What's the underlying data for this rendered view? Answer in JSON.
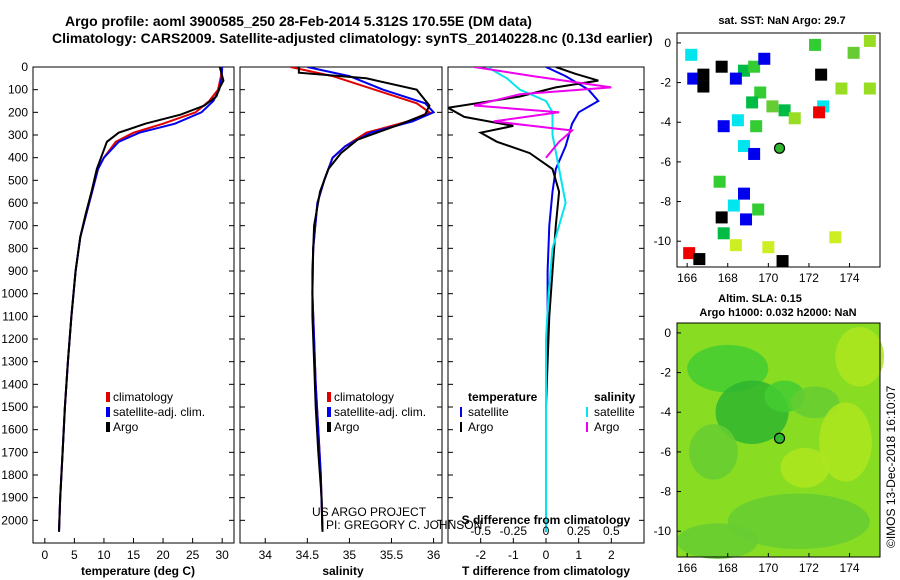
{
  "title_line1": "Argo profile: aoml 3900585_250 28-Feb-2014 5.312S 170.55E (DM data)",
  "title_line2": "Climatology: CARS2009. Satellite-adjusted climatology: synTS_20140228.nc (0.13d earlier)",
  "credit_project": "US ARGO PROJECT",
  "credit_pi": "PI: GREGORY C. JOHNSON",
  "footer_stamp": "©IMOS 13-Dec-2018 16:10:07",
  "colors": {
    "climatology": "#e00000",
    "satellite": "#0000ee",
    "argo": "#000000",
    "sat_cyan": "#00e5ee",
    "argo_magenta": "#ee00ee",
    "map_green": "#88dd22"
  },
  "chart_data": [
    {
      "type": "line",
      "name": "temperature",
      "xlabel": "temperature (deg C)",
      "xlim": [
        -2,
        32
      ],
      "ylim": [
        2100,
        0
      ],
      "xticks": [
        0,
        5,
        10,
        15,
        20,
        25,
        30
      ],
      "yticks": [
        0,
        100,
        200,
        300,
        400,
        500,
        600,
        700,
        800,
        900,
        1000,
        1100,
        1200,
        1300,
        1400,
        1500,
        1600,
        1700,
        1800,
        1900,
        2000
      ],
      "legend": [
        "climatology",
        "satellite-adj. clim.",
        "Argo"
      ],
      "series": [
        {
          "name": "climatology",
          "color": "#e00000",
          "points": [
            [
              29.9,
              0
            ],
            [
              29.8,
              40
            ],
            [
              29.3,
              100
            ],
            [
              27.8,
              150
            ],
            [
              25.5,
              200
            ],
            [
              20,
              250
            ],
            [
              15,
              290
            ],
            [
              12,
              330
            ],
            [
              10,
              400
            ],
            [
              9,
              450
            ],
            [
              8,
              550
            ],
            [
              7,
              650
            ],
            [
              6,
              750
            ],
            [
              5.2,
              900
            ],
            [
              4.5,
              1100
            ],
            [
              3.9,
              1300
            ],
            [
              3.4,
              1500
            ],
            [
              3,
              1700
            ],
            [
              2.6,
              1900
            ],
            [
              2.4,
              2050
            ]
          ]
        },
        {
          "name": "satellite-adj. clim.",
          "color": "#0000ee",
          "points": [
            [
              30,
              0
            ],
            [
              29.9,
              50
            ],
            [
              29.5,
              100
            ],
            [
              28.5,
              150
            ],
            [
              26.5,
              200
            ],
            [
              22,
              250
            ],
            [
              16,
              290
            ],
            [
              12.5,
              330
            ],
            [
              10,
              400
            ],
            [
              9,
              450
            ],
            [
              8,
              550
            ],
            [
              7,
              650
            ],
            [
              6,
              750
            ],
            [
              5.2,
              900
            ],
            [
              4.5,
              1100
            ],
            [
              3.9,
              1300
            ],
            [
              3.4,
              1500
            ],
            [
              3,
              1700
            ],
            [
              2.6,
              1900
            ],
            [
              2.4,
              2050
            ]
          ]
        },
        {
          "name": "Argo",
          "color": "#000000",
          "points": [
            [
              29.6,
              0
            ],
            [
              29.9,
              30
            ],
            [
              30.2,
              60
            ],
            [
              29.6,
              90
            ],
            [
              29,
              130
            ],
            [
              27,
              170
            ],
            [
              23,
              210
            ],
            [
              17,
              250
            ],
            [
              12.5,
              290
            ],
            [
              10.5,
              330
            ],
            [
              9.5,
              400
            ],
            [
              8.8,
              450
            ],
            [
              7.9,
              550
            ],
            [
              6.9,
              650
            ],
            [
              6,
              750
            ],
            [
              5.2,
              900
            ],
            [
              4.5,
              1100
            ],
            [
              3.9,
              1300
            ],
            [
              3.4,
              1500
            ],
            [
              3,
              1700
            ],
            [
              2.6,
              1900
            ],
            [
              2.4,
              2050
            ]
          ]
        }
      ]
    },
    {
      "type": "line",
      "name": "salinity",
      "xlabel": "salinity",
      "xlim": [
        33.7,
        36.1
      ],
      "ylim": [
        2100,
        0
      ],
      "xticks": [
        34,
        34.5,
        35,
        35.5,
        36
      ],
      "legend": [
        "climatology",
        "satellite-adj. clim.",
        "Argo"
      ],
      "series": [
        {
          "name": "climatology",
          "color": "#e00000",
          "points": [
            [
              34.3,
              0
            ],
            [
              34.8,
              40
            ],
            [
              35.3,
              100
            ],
            [
              35.8,
              160
            ],
            [
              35.95,
              200
            ],
            [
              35.7,
              240
            ],
            [
              35.2,
              290
            ],
            [
              34.95,
              350
            ],
            [
              34.8,
              400
            ],
            [
              34.7,
              500
            ],
            [
              34.62,
              600
            ],
            [
              34.57,
              800
            ],
            [
              34.56,
              1000
            ],
            [
              34.58,
              1200
            ],
            [
              34.6,
              1400
            ],
            [
              34.63,
              1600
            ],
            [
              34.66,
              1800
            ],
            [
              34.68,
              2050
            ]
          ]
        },
        {
          "name": "satellite-adj. clim.",
          "color": "#0000ee",
          "points": [
            [
              34.5,
              0
            ],
            [
              35,
              40
            ],
            [
              35.4,
              100
            ],
            [
              35.9,
              160
            ],
            [
              36,
              200
            ],
            [
              35.75,
              240
            ],
            [
              35.25,
              290
            ],
            [
              34.95,
              350
            ],
            [
              34.8,
              400
            ],
            [
              34.7,
              500
            ],
            [
              34.62,
              600
            ],
            [
              34.57,
              800
            ],
            [
              34.56,
              1000
            ],
            [
              34.58,
              1200
            ],
            [
              34.6,
              1400
            ],
            [
              34.63,
              1600
            ],
            [
              34.66,
              1800
            ],
            [
              34.68,
              2050
            ]
          ]
        },
        {
          "name": "Argo",
          "color": "#000000",
          "points": [
            [
              34.4,
              0
            ],
            [
              34.4,
              25
            ],
            [
              35.2,
              50
            ],
            [
              35.8,
              100
            ],
            [
              35.95,
              170
            ],
            [
              35.9,
              210
            ],
            [
              35.55,
              260
            ],
            [
              35.1,
              320
            ],
            [
              34.9,
              380
            ],
            [
              34.75,
              450
            ],
            [
              34.65,
              550
            ],
            [
              34.58,
              700
            ],
            [
              34.56,
              900
            ],
            [
              34.56,
              1100
            ],
            [
              34.58,
              1300
            ],
            [
              34.6,
              1500
            ],
            [
              34.63,
              1700
            ],
            [
              34.67,
              1900
            ],
            [
              34.68,
              2050
            ]
          ]
        }
      ]
    },
    {
      "type": "line",
      "name": "difference",
      "xlabel": "T difference from climatology",
      "xlabel_top": "S difference from climatology",
      "xlim": [
        -3,
        3
      ],
      "ylim": [
        2100,
        0
      ],
      "xticks": [
        -2,
        -1,
        0,
        1,
        2
      ],
      "xticks_top": [
        -0.5,
        -0.25,
        0,
        0.25,
        0.5
      ],
      "legend_left_title": "temperature",
      "legend_right_title": "salinity",
      "legend": [
        "satellite",
        "Argo",
        "satellite",
        "Argo"
      ],
      "series": [
        {
          "name": "T satellite",
          "color": "#0000ee",
          "points": [
            [
              0,
              0
            ],
            [
              0.6,
              40
            ],
            [
              1.3,
              100
            ],
            [
              1.6,
              150
            ],
            [
              1,
              200
            ],
            [
              0.8,
              250
            ],
            [
              0.6,
              350
            ],
            [
              0.3,
              450
            ],
            [
              0.2,
              550
            ],
            [
              0.1,
              700
            ],
            [
              0.05,
              900
            ],
            [
              0.05,
              1100
            ],
            [
              0,
              1300
            ],
            [
              0,
              1500
            ],
            [
              0,
              1800
            ],
            [
              0,
              2050
            ]
          ]
        },
        {
          "name": "T Argo",
          "color": "#000000",
          "points": [
            [
              0.3,
              0
            ],
            [
              0.9,
              30
            ],
            [
              1.6,
              60
            ],
            [
              0.3,
              90
            ],
            [
              -0.8,
              130
            ],
            [
              -3,
              180
            ],
            [
              -2.5,
              220
            ],
            [
              -1,
              260
            ],
            [
              -2,
              290
            ],
            [
              -1.5,
              330
            ],
            [
              -0.5,
              380
            ],
            [
              0.2,
              450
            ],
            [
              0.4,
              550
            ],
            [
              0.3,
              700
            ],
            [
              0.2,
              900
            ],
            [
              0.1,
              1100
            ],
            [
              0.05,
              1300
            ],
            [
              0,
              1500
            ],
            [
              0,
              1800
            ],
            [
              0,
              2050
            ]
          ]
        },
        {
          "name": "S satellite",
          "color": "#00e5ee",
          "points": [
            [
              -0.45,
              0
            ],
            [
              -0.3,
              50
            ],
            [
              -0.2,
              100
            ],
            [
              0,
              150
            ],
            [
              0.05,
              200
            ],
            [
              0.05,
              300
            ],
            [
              0.1,
              450
            ],
            [
              0.15,
              600
            ],
            [
              0.05,
              800
            ],
            [
              0.02,
              1000
            ],
            [
              0,
              1200
            ],
            [
              0,
              1500
            ],
            [
              0,
              1800
            ],
            [
              0,
              2050
            ]
          ]
        },
        {
          "name": "S Argo",
          "color": "#ee00ee",
          "points": [
            [
              -0.55,
              0
            ],
            [
              -0.1,
              40
            ],
            [
              0.5,
              90
            ],
            [
              -0.2,
              120
            ],
            [
              -0.55,
              170
            ],
            [
              0.1,
              200
            ],
            [
              -0.4,
              240
            ],
            [
              0.2,
              280
            ],
            [
              0.1,
              330
            ],
            [
              0,
              400
            ]
          ]
        }
      ]
    },
    {
      "type": "heatmap",
      "name": "sst_map",
      "title": "sat. SST: NaN Argo: 29.7",
      "xlim": [
        165.5,
        175.5
      ],
      "ylim": [
        -11.3,
        0.5
      ],
      "xticks": [
        166,
        168,
        170,
        172,
        174
      ],
      "yticks": [
        0,
        -2,
        -4,
        -6,
        -8,
        -10
      ],
      "argo_position": [
        170.55,
        -5.312
      ],
      "patches": [
        {
          "x": 166.2,
          "y": -0.6,
          "c": "#00e5ee"
        },
        {
          "x": 167.7,
          "y": -1.2,
          "c": "#000000"
        },
        {
          "x": 166.3,
          "y": -1.8,
          "c": "#0000ee"
        },
        {
          "x": 166.8,
          "y": -2.2,
          "c": "#000000"
        },
        {
          "x": 168.8,
          "y": -1.4,
          "c": "#00bb44"
        },
        {
          "x": 169.3,
          "y": -1.2,
          "c": "#33cc33"
        },
        {
          "x": 168.4,
          "y": -1.8,
          "c": "#0000ee"
        },
        {
          "x": 169.6,
          "y": -2.5,
          "c": "#33cc33"
        },
        {
          "x": 169.2,
          "y": -3.0,
          "c": "#00bb44"
        },
        {
          "x": 170.2,
          "y": -3.2,
          "c": "#66cc33"
        },
        {
          "x": 170.8,
          "y": -3.4,
          "c": "#00bb44"
        },
        {
          "x": 168.5,
          "y": -3.9,
          "c": "#00e5ee"
        },
        {
          "x": 167.8,
          "y": -4.2,
          "c": "#0000ee"
        },
        {
          "x": 169.4,
          "y": -4.2,
          "c": "#33cc33"
        },
        {
          "x": 171.3,
          "y": -3.8,
          "c": "#99dd22"
        },
        {
          "x": 168.8,
          "y": -5.2,
          "c": "#00e5ee"
        },
        {
          "x": 169.3,
          "y": -5.6,
          "c": "#0000ee"
        },
        {
          "x": 167.6,
          "y": -7.0,
          "c": "#33cc33"
        },
        {
          "x": 168.8,
          "y": -7.6,
          "c": "#0000ee"
        },
        {
          "x": 168.3,
          "y": -8.2,
          "c": "#00e5ee"
        },
        {
          "x": 169.5,
          "y": -8.4,
          "c": "#33cc33"
        },
        {
          "x": 168.9,
          "y": -8.9,
          "c": "#0000ee"
        },
        {
          "x": 167.7,
          "y": -8.8,
          "c": "#000000"
        },
        {
          "x": 168.4,
          "y": -10.2,
          "c": "#ccee22"
        },
        {
          "x": 167.8,
          "y": -9.6,
          "c": "#00bb44"
        },
        {
          "x": 170.7,
          "y": -11.0,
          "c": "#000000"
        },
        {
          "x": 166.1,
          "y": -10.6,
          "c": "#ee0000"
        },
        {
          "x": 166.6,
          "y": -10.9,
          "c": "#000000"
        },
        {
          "x": 172.3,
          "y": -0.1,
          "c": "#33cc33"
        },
        {
          "x": 174.2,
          "y": -0.5,
          "c": "#66cc33"
        },
        {
          "x": 175.0,
          "y": 0.1,
          "c": "#99dd22"
        },
        {
          "x": 172.6,
          "y": -1.6,
          "c": "#000000"
        },
        {
          "x": 173.6,
          "y": -2.3,
          "c": "#99dd22"
        },
        {
          "x": 172.7,
          "y": -3.2,
          "c": "#00e5ee"
        },
        {
          "x": 172.5,
          "y": -3.5,
          "c": "#ee0000"
        },
        {
          "x": 175.0,
          "y": -2.3,
          "c": "#99dd22"
        },
        {
          "x": 173.3,
          "y": -9.8,
          "c": "#ccee22"
        },
        {
          "x": 170.0,
          "y": -10.3,
          "c": "#ccee22"
        },
        {
          "x": 166.8,
          "y": -1.6,
          "c": "#000000"
        },
        {
          "x": 169.8,
          "y": -0.8,
          "c": "#0000ee"
        }
      ]
    },
    {
      "type": "heatmap",
      "name": "sla_map",
      "title": "Altim. SLA: 0.15",
      "subtitle": "Argo h1000: 0.032 h2000: NaN",
      "xlim": [
        165.5,
        175.5
      ],
      "ylim": [
        -11.3,
        0.5
      ],
      "xticks": [
        166,
        168,
        170,
        172,
        174
      ],
      "yticks": [
        0,
        -2,
        -4,
        -6,
        -8,
        -10
      ],
      "argo_position": [
        170.55,
        -5.312
      ]
    }
  ]
}
